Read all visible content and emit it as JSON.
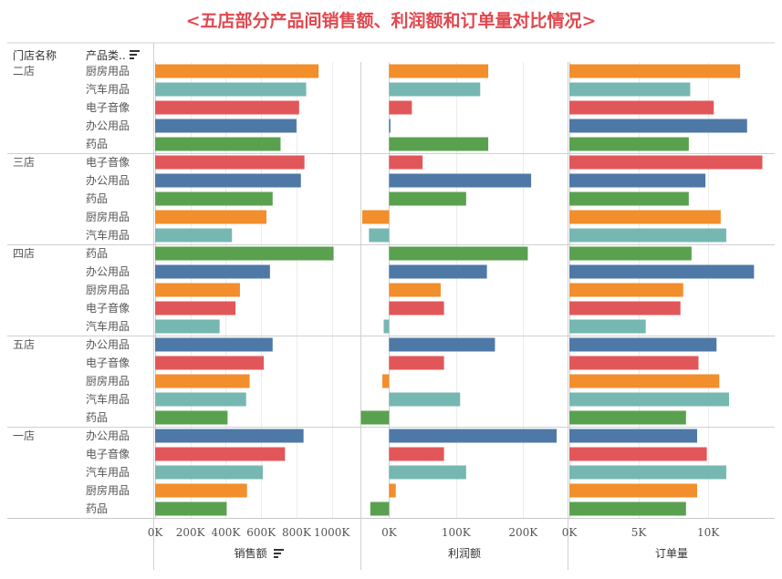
{
  "title": "<五店部分产品间销售额、利润额和订单量对比情况>",
  "headers": {
    "store": "门店名称",
    "category": "产品类.."
  },
  "colors": {
    "厨房用品": "#f28e2b",
    "汽车用品": "#76b7b2",
    "电子音像": "#e15759",
    "办公用品": "#4e79a7",
    "药品": "#59a14f"
  },
  "chart_data": {
    "type": "bar",
    "orientation": "horizontal",
    "panels": [
      {
        "key": "sales",
        "xlabel": "销售额",
        "xlim": [
          0,
          1100000
        ],
        "ticks": [
          0,
          200000,
          400000,
          600000,
          800000,
          1000000
        ],
        "tick_labels": [
          "0K",
          "200K",
          "400K",
          "600K",
          "800K",
          "1000K"
        ]
      },
      {
        "key": "profit",
        "xlabel": "利润额",
        "xlim": [
          -40000,
          250000
        ],
        "ticks": [
          0,
          100000,
          200000
        ],
        "tick_labels": [
          "0K",
          "100K",
          "200K"
        ]
      },
      {
        "key": "orders",
        "xlabel": "订单量",
        "xlim": [
          0,
          14000
        ],
        "ticks": [
          0,
          5000,
          10000
        ],
        "tick_labels": [
          "0K",
          "5K",
          "10K"
        ]
      }
    ],
    "stores": [
      {
        "name": "二店",
        "rows": [
          {
            "category": "厨房用品",
            "sales": 925000,
            "profit": 148000,
            "orders": 12300
          },
          {
            "category": "汽车用品",
            "sales": 855000,
            "profit": 136000,
            "orders": 8700
          },
          {
            "category": "电子音像",
            "sales": 815000,
            "profit": 34000,
            "orders": 10400
          },
          {
            "category": "办公用品",
            "sales": 800000,
            "profit": 2000,
            "orders": 12800
          },
          {
            "category": "药品",
            "sales": 710000,
            "profit": 148000,
            "orders": 8600
          }
        ]
      },
      {
        "name": "三店",
        "rows": [
          {
            "category": "电子音像",
            "sales": 845000,
            "profit": 50000,
            "orders": 13900
          },
          {
            "category": "办公用品",
            "sales": 825000,
            "profit": 212000,
            "orders": 9800
          },
          {
            "category": "药品",
            "sales": 665000,
            "profit": 115000,
            "orders": 8600
          },
          {
            "category": "厨房用品",
            "sales": 630000,
            "profit": -40000,
            "orders": 10900
          },
          {
            "category": "汽车用品",
            "sales": 435000,
            "profit": -30000,
            "orders": 11300
          }
        ]
      },
      {
        "name": "四店",
        "rows": [
          {
            "category": "药品",
            "sales": 1010000,
            "profit": 207000,
            "orders": 8800
          },
          {
            "category": "办公用品",
            "sales": 650000,
            "profit": 146000,
            "orders": 13300
          },
          {
            "category": "厨房用品",
            "sales": 480000,
            "profit": 77000,
            "orders": 8200
          },
          {
            "category": "电子音像",
            "sales": 455000,
            "profit": 82000,
            "orders": 8000
          },
          {
            "category": "汽车用品",
            "sales": 365000,
            "profit": -8000,
            "orders": 5500
          }
        ]
      },
      {
        "name": "五店",
        "rows": [
          {
            "category": "办公用品",
            "sales": 665000,
            "profit": 158000,
            "orders": 10600
          },
          {
            "category": "电子音像",
            "sales": 615000,
            "profit": 82000,
            "orders": 9300
          },
          {
            "category": "厨房用品",
            "sales": 535000,
            "profit": -10000,
            "orders": 10800
          },
          {
            "category": "汽车用品",
            "sales": 515000,
            "profit": 106000,
            "orders": 11500
          },
          {
            "category": "药品",
            "sales": 410000,
            "profit": -42000,
            "orders": 8400
          }
        ]
      },
      {
        "name": "一店",
        "rows": [
          {
            "category": "办公用品",
            "sales": 840000,
            "profit": 250000,
            "orders": 9200
          },
          {
            "category": "电子音像",
            "sales": 735000,
            "profit": 82000,
            "orders": 9900
          },
          {
            "category": "汽车用品",
            "sales": 610000,
            "profit": 115000,
            "orders": 11300
          },
          {
            "category": "厨房用品",
            "sales": 520000,
            "profit": 10000,
            "orders": 9200
          },
          {
            "category": "药品",
            "sales": 405000,
            "profit": -28000,
            "orders": 8400
          }
        ]
      }
    ]
  }
}
